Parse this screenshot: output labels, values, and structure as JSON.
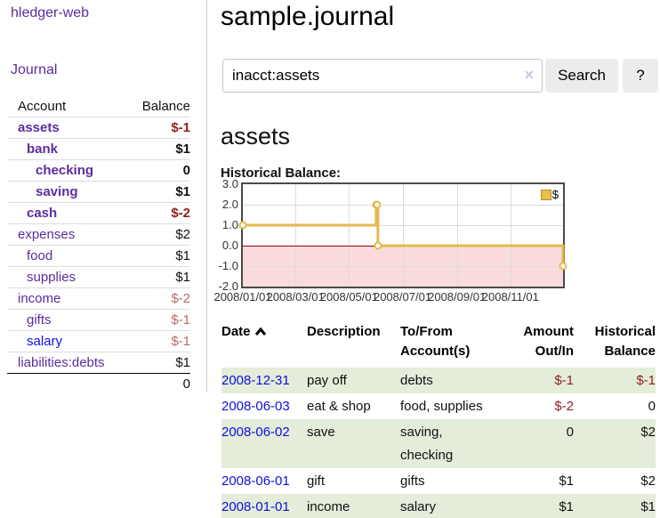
{
  "sidebar": {
    "app_title": "hledger-web",
    "nav_journal": "Journal",
    "account_header": "Account",
    "balance_header": "Balance",
    "accounts": [
      {
        "name": "assets",
        "balance": "$-1",
        "level": 1,
        "bold": true,
        "balance_tone": "neg-strong"
      },
      {
        "name": "bank",
        "balance": "$1",
        "level": 2,
        "bold": true,
        "balance_tone": "pos"
      },
      {
        "name": "checking",
        "balance": "0",
        "level": 3,
        "bold": true,
        "balance_tone": "pos"
      },
      {
        "name": "saving",
        "balance": "$1",
        "level": 3,
        "bold": true,
        "balance_tone": "pos"
      },
      {
        "name": "cash",
        "balance": "$-2",
        "level": 2,
        "bold": true,
        "balance_tone": "neg-strong"
      },
      {
        "name": "expenses",
        "balance": "$2",
        "level": 1,
        "bold": false,
        "balance_tone": "pos"
      },
      {
        "name": "food",
        "balance": "$1",
        "level": 2,
        "bold": false,
        "balance_tone": "pos"
      },
      {
        "name": "supplies",
        "balance": "$1",
        "level": 2,
        "bold": false,
        "balance_tone": "pos"
      },
      {
        "name": "income",
        "balance": "$-2",
        "level": 1,
        "bold": false,
        "balance_tone": "neg-muted"
      },
      {
        "name": "gifts",
        "balance": "$-1",
        "level": 2,
        "bold": false,
        "balance_tone": "neg-muted"
      },
      {
        "name": "salary",
        "balance": "$-1",
        "level": 2,
        "bold": false,
        "balance_tone": "neg-muted",
        "link_color": "blue"
      },
      {
        "name": "liabilities:debts",
        "balance": "$1",
        "level": 1,
        "bold": false,
        "balance_tone": "pos"
      }
    ],
    "total": "0"
  },
  "main": {
    "title": "sample.journal",
    "search": {
      "value": "inacct:assets",
      "clear_label": "×",
      "button": "Search",
      "help": "?"
    },
    "account_heading": "assets",
    "chart_label": "Historical Balance:",
    "register": {
      "headers": {
        "date": "Date",
        "description": "Description",
        "tofrom": "To/From Account(s)",
        "amount": "Amount Out/In",
        "balance": "Historical Balance"
      },
      "rows": [
        {
          "date": "2008-12-31",
          "description": "pay off",
          "accounts": "debts",
          "amount": "$-1",
          "balance": "$-1",
          "amount_neg": true,
          "balance_neg": true
        },
        {
          "date": "2008-06-03",
          "description": "eat & shop",
          "accounts": "food, supplies",
          "amount": "$-2",
          "balance": "0",
          "amount_neg": true,
          "balance_neg": false
        },
        {
          "date": "2008-06-02",
          "description": "save",
          "accounts": "saving, checking",
          "amount": "0",
          "balance": "$2",
          "amount_neg": false,
          "balance_neg": false
        },
        {
          "date": "2008-06-01",
          "description": "gift",
          "accounts": "gifts",
          "amount": "$1",
          "balance": "$2",
          "amount_neg": false,
          "balance_neg": false
        },
        {
          "date": "2008-01-01",
          "description": "income",
          "accounts": "salary",
          "amount": "$1",
          "balance": "$1",
          "amount_neg": false,
          "balance_neg": false
        }
      ]
    }
  },
  "chart_data": {
    "type": "line",
    "title": "Historical Balance",
    "step": "after",
    "legend": [
      {
        "label": "$",
        "color": "#e9c048"
      }
    ],
    "points": [
      {
        "date": "2008-01-01",
        "value": 1
      },
      {
        "date": "2008-06-01",
        "value": 2
      },
      {
        "date": "2008-06-02",
        "value": 2
      },
      {
        "date": "2008-06-03",
        "value": 0
      },
      {
        "date": "2008-12-31",
        "value": -1
      }
    ],
    "x_range": [
      "2008-01-01",
      "2008-12-31"
    ],
    "ylim": [
      -2,
      3
    ],
    "y_ticks": [
      3.0,
      2.0,
      1.0,
      0.0,
      -1.0,
      -2.0
    ],
    "x_ticks": [
      "2008/01/01",
      "2008/03/01",
      "2008/05/01",
      "2008/07/01",
      "2008/09/01",
      "2008/11/01"
    ],
    "line_color": "#e4b94a",
    "negative_region_color": "#f9dbdb",
    "zero_line_color": "#9a0000",
    "grid": true,
    "legend_position": "top-right"
  },
  "colors": {
    "link_purple": "#5b2d9e",
    "link_blue": "#0f0fe0",
    "negative_strong": "#8f1d1d",
    "negative_muted": "#b36b6b",
    "row_green": "#e3edda",
    "chart_gold": "#e4b94a",
    "chart_negative_pink": "#f9dbdb"
  }
}
